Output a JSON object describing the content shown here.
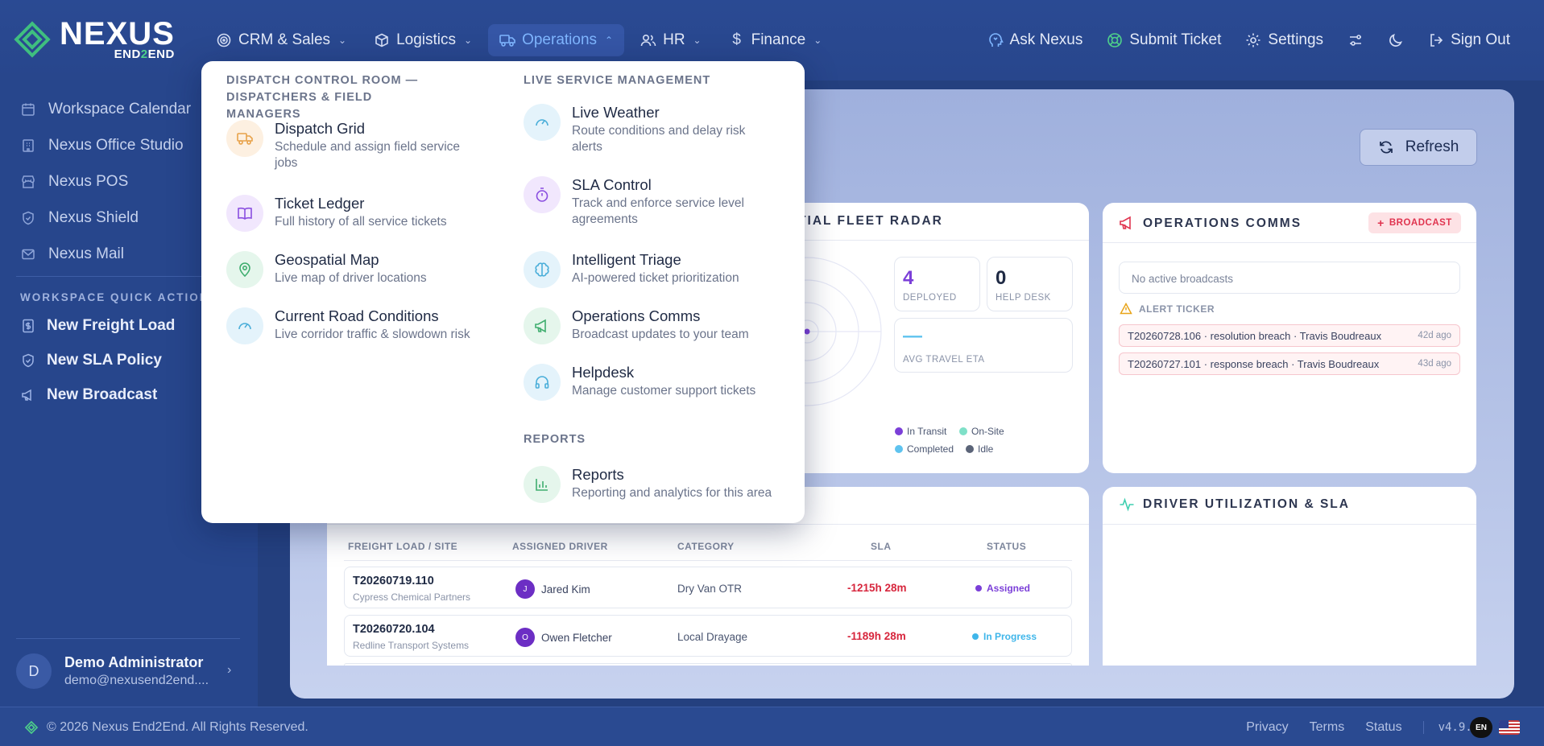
{
  "brand": {
    "name": "NEXUS",
    "sub_pre": "END",
    "sub_mid": "2",
    "sub_post": "END"
  },
  "nav": {
    "items": [
      {
        "label": "CRM & Sales",
        "icon": "target-icon"
      },
      {
        "label": "Logistics",
        "icon": "box-icon"
      },
      {
        "label": "Operations",
        "icon": "truck-icon",
        "active": true
      },
      {
        "label": "HR",
        "icon": "users-icon"
      },
      {
        "label": "Finance",
        "icon": "dollar-icon"
      }
    ],
    "right": {
      "ask": "Ask Nexus",
      "ticket": "Submit Ticket",
      "settings": "Settings",
      "signout": "Sign Out"
    }
  },
  "sidebar": {
    "links": [
      {
        "label": "Workspace Calendar",
        "icon": "calendar-icon"
      },
      {
        "label": "Nexus Office Studio",
        "icon": "building-icon"
      },
      {
        "label": "Nexus POS",
        "icon": "store-icon"
      },
      {
        "label": "Nexus Shield",
        "icon": "shield-icon"
      },
      {
        "label": "Nexus Mail",
        "icon": "mail-icon"
      }
    ],
    "quick_heading": "WORKSPACE QUICK ACTIONS",
    "quick": [
      {
        "label": "New Freight Load",
        "icon": "dollar-doc-icon"
      },
      {
        "label": "New SLA Policy",
        "icon": "shield-icon"
      },
      {
        "label": "New Broadcast",
        "icon": "megaphone-icon"
      }
    ],
    "user": {
      "initial": "D",
      "name": "Demo Administrator",
      "email": "demo@nexusend2end...."
    }
  },
  "dropdown": {
    "left_heading": "DISPATCH CONTROL ROOM — DISPATCHERS & FIELD MANAGERS",
    "left": [
      {
        "title": "Dispatch Grid",
        "desc": "Schedule and assign field service jobs"
      },
      {
        "title": "Ticket Ledger",
        "desc": "Full history of all service tickets"
      },
      {
        "title": "Geospatial Map",
        "desc": "Live map of driver locations"
      },
      {
        "title": "Current Road Conditions",
        "desc": "Live corridor traffic & slowdown risk"
      }
    ],
    "right_heading": "LIVE SERVICE MANAGEMENT",
    "right": [
      {
        "title": "Live Weather",
        "desc": "Route conditions and delay risk alerts"
      },
      {
        "title": "SLA Control",
        "desc": "Track and enforce service level agreements"
      },
      {
        "title": "Intelligent Triage",
        "desc": "AI-powered ticket prioritization"
      },
      {
        "title": "Operations Comms",
        "desc": "Broadcast updates to your team"
      },
      {
        "title": "Helpdesk",
        "desc": "Manage customer support tickets"
      }
    ],
    "reports_heading": "REPORTS",
    "reports": {
      "title": "Reports",
      "desc": "Reporting and analytics for this area"
    }
  },
  "board": {
    "refresh": "Refresh",
    "fleet": {
      "title": "ATIAL FLEET RADAR",
      "deployed": "4",
      "deployed_label": "DEPLOYED",
      "helpdesk": "0",
      "helpdesk_label": "HELP DESK",
      "eta": "—",
      "eta_label": "AVG TRAVEL ETA",
      "legend": [
        {
          "label": "In Transit",
          "color": "#7b3fd8"
        },
        {
          "label": "On-Site",
          "color": "#7fe0c8"
        },
        {
          "label": "Completed",
          "color": "#5fc3ef"
        },
        {
          "label": "Idle",
          "color": "#5b6478"
        }
      ]
    },
    "comms": {
      "title": "OPERATIONS COMMS",
      "broadcast": "BROADCAST",
      "no_broadcasts": "No active broadcasts",
      "alert_heading": "ALERT TICKER",
      "alerts": [
        {
          "text": "T20260728.106 · resolution breach · Travis Boudreaux",
          "ago": "42d ago"
        },
        {
          "text": "T20260727.101 · response breach · Travis Boudreaux",
          "ago": "43d ago"
        }
      ]
    },
    "table": {
      "headers": [
        "FREIGHT LOAD / SITE",
        "ASSIGNED DRIVER",
        "CATEGORY",
        "SLA",
        "STATUS"
      ],
      "rows": [
        {
          "load": "T20260719.110",
          "site": "Cypress Chemical Partners",
          "driver_initial": "J",
          "driver": "Jared Kim",
          "category": "Dry Van OTR",
          "sla": "-1215h 28m",
          "status": "Assigned",
          "status_color": "#7b3fd8"
        },
        {
          "load": "T20260720.104",
          "site": "Redline Transport Systems",
          "driver_initial": "O",
          "driver": "Owen Fletcher",
          "category": "Local Drayage",
          "sla": "-1189h 28m",
          "status": "In Progress",
          "status_color": "#3fb6ea"
        }
      ]
    },
    "util": {
      "title": "DRIVER UTILIZATION & SLA"
    }
  },
  "footer": {
    "copyright": "© 2026 Nexus End2End. All Rights Reserved.",
    "privacy": "Privacy",
    "terms": "Terms",
    "status": "Status",
    "version": "v4.9.104",
    "lang": "EN"
  }
}
